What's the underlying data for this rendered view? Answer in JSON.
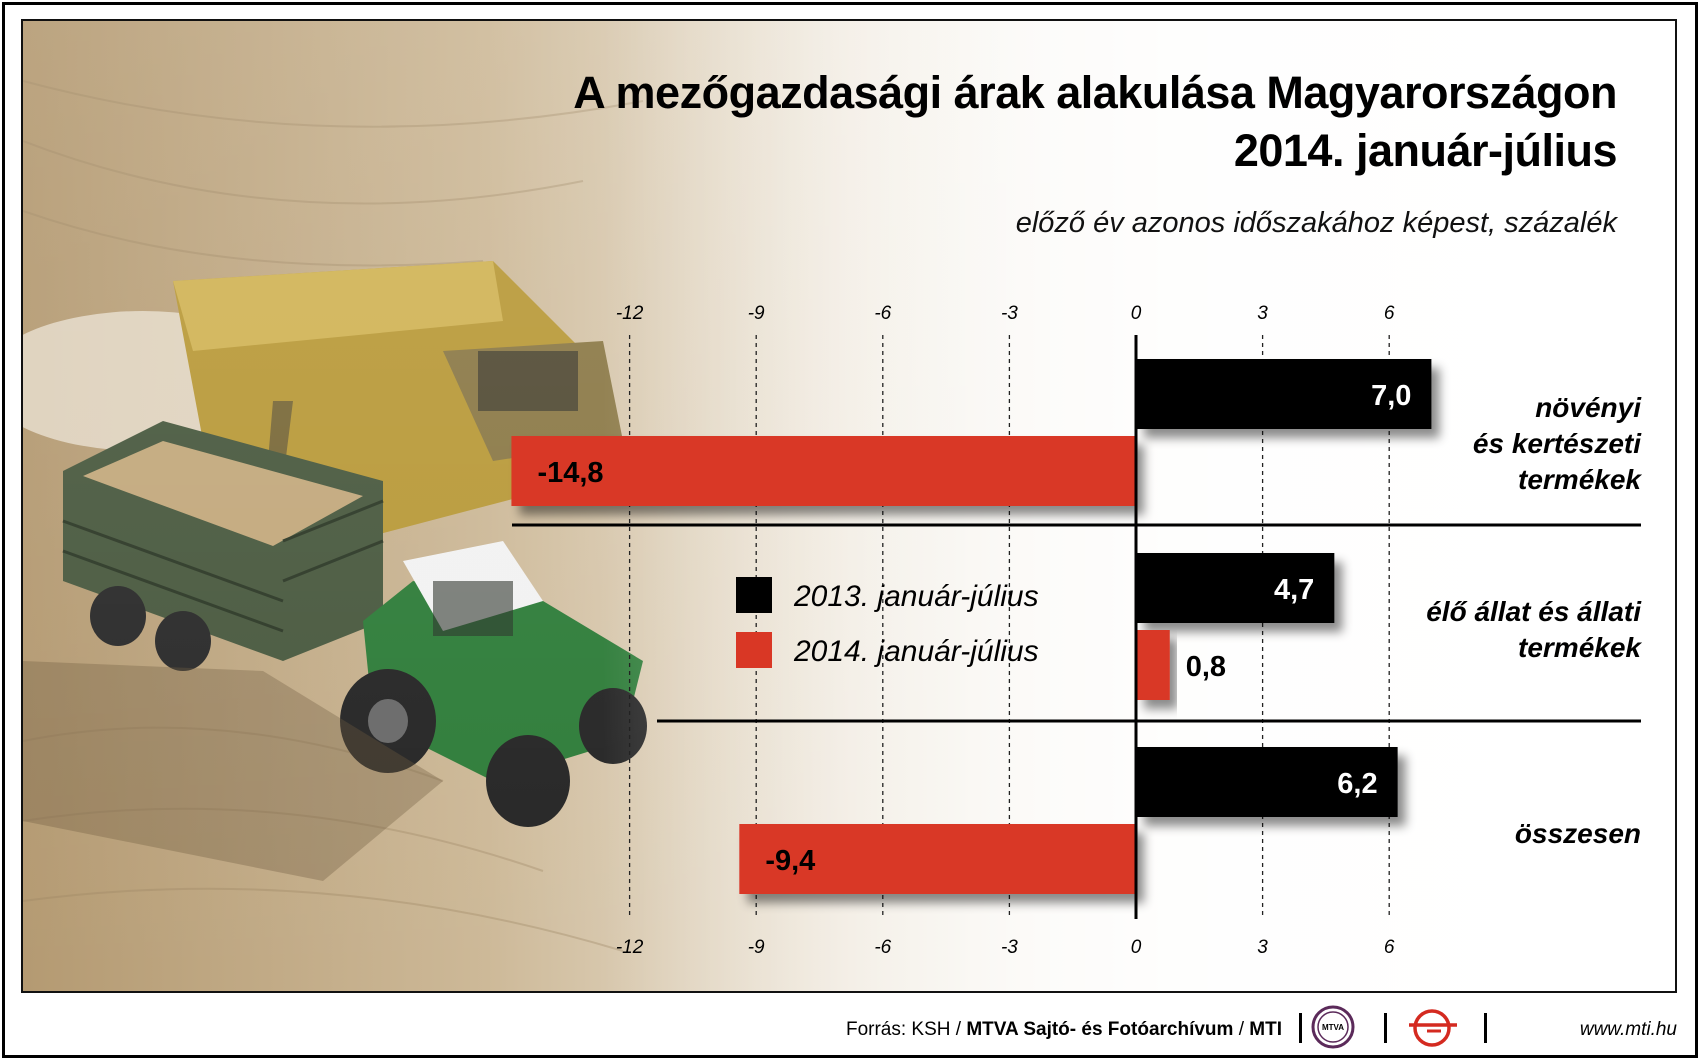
{
  "title_line1": "A mezőgazdasági árak alakulása Magyarországon",
  "title_line2": "2014. január-július",
  "subtitle": "előző év azonos időszakához képest, százalék",
  "chart_data": {
    "type": "bar",
    "orientation": "horizontal",
    "categories": [
      [
        "növényi",
        "és kertészeti",
        "termékek"
      ],
      [
        "élő állat és állati",
        "termékek"
      ],
      [
        "összesen"
      ]
    ],
    "series": [
      {
        "name": "2013. január-július",
        "color": "#000000",
        "values": [
          7.0,
          4.7,
          6.2
        ],
        "labels": [
          "7,0",
          "4,7",
          "6,2"
        ]
      },
      {
        "name": "2014. január-július",
        "color": "#d93725",
        "values": [
          -14.8,
          0.8,
          -9.4
        ],
        "labels": [
          "-14,8",
          "0,8",
          "-9,4"
        ]
      }
    ],
    "ticks": [
      -12,
      -9,
      -6,
      -3,
      0,
      3,
      6
    ],
    "xlim": [
      -15,
      8
    ],
    "grid": true,
    "legend_position": "center-left"
  },
  "footer": {
    "source_prefix": "Forrás: KSH / ",
    "source_bold": "MTVA Sajtó- és Fotóarchívum",
    "source_sep": " / ",
    "source_mti": "MTI",
    "logo_mtva": "MTVA",
    "website": "www.mti.hu"
  }
}
